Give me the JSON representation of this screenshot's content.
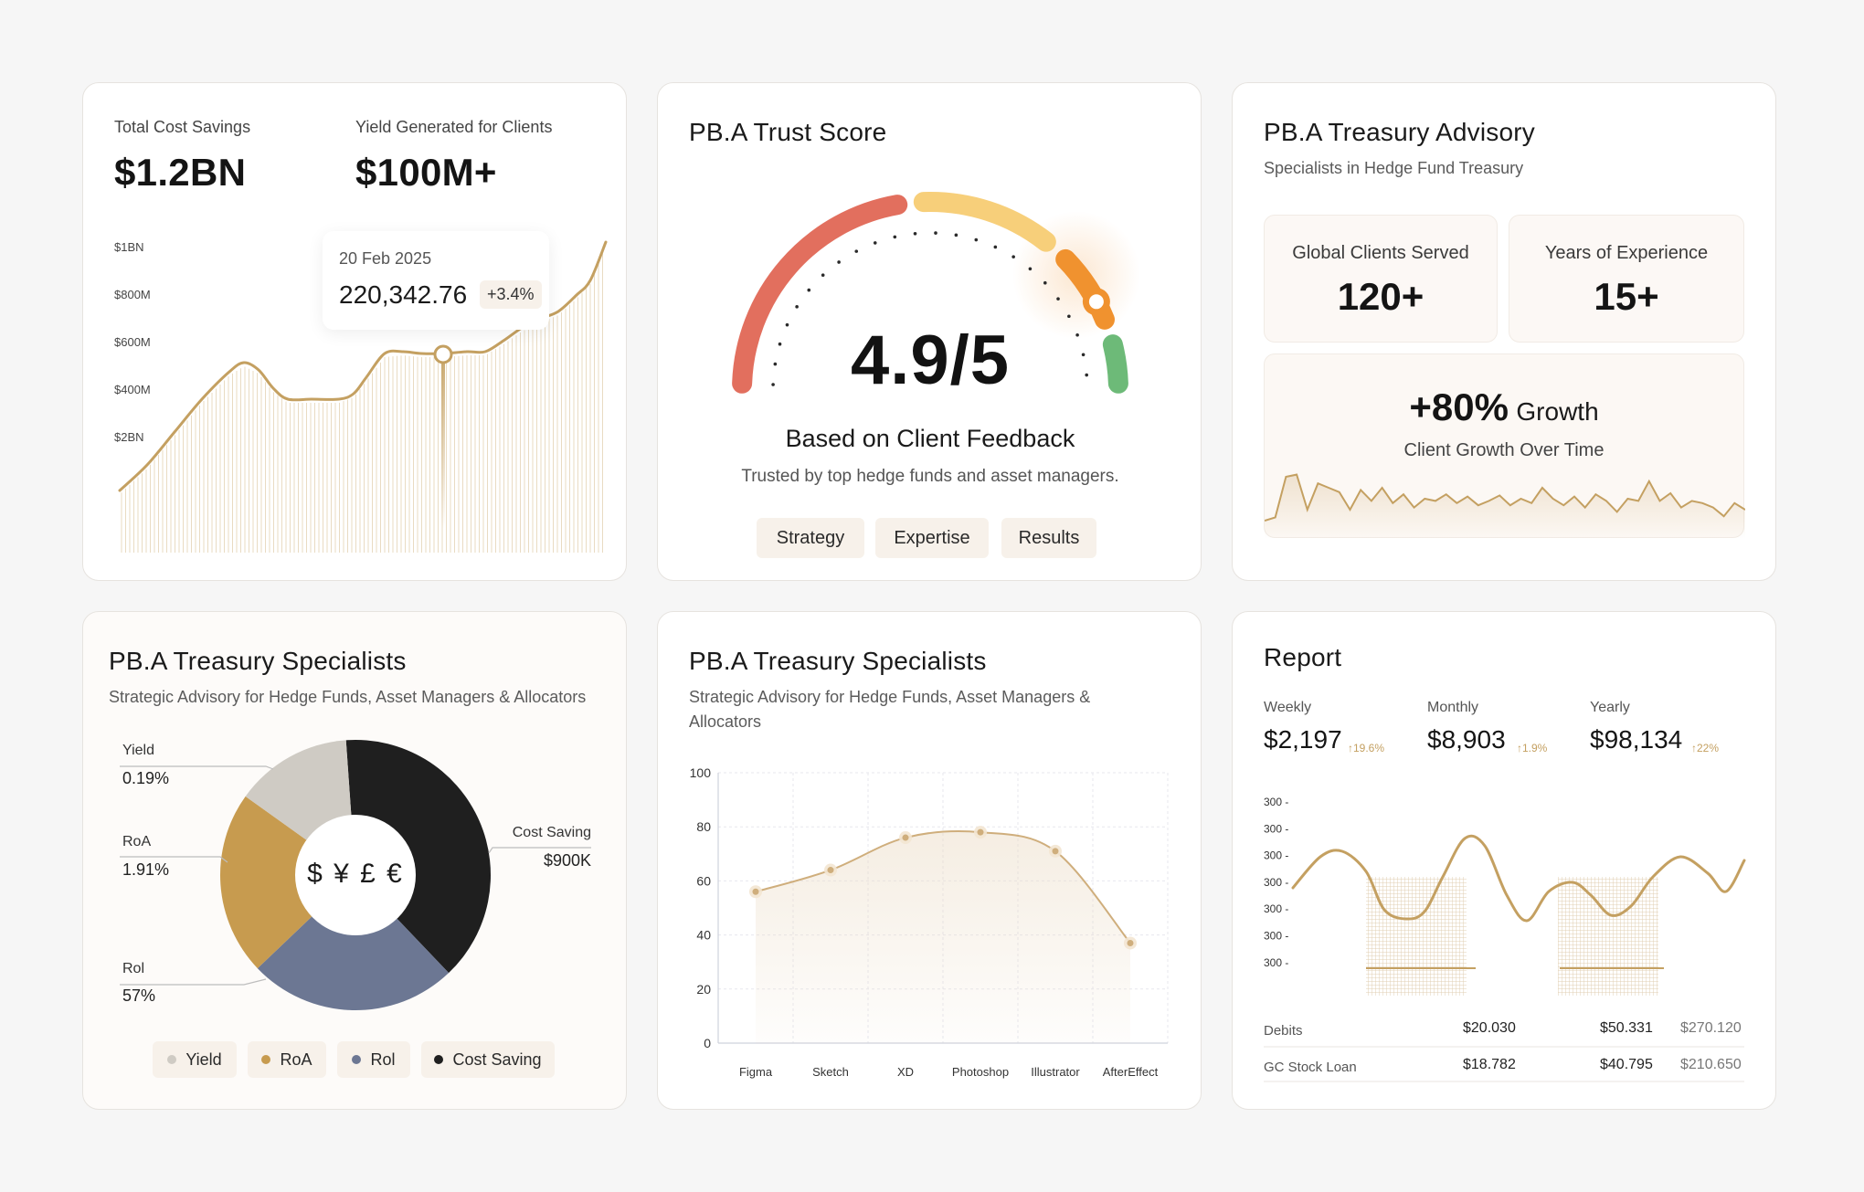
{
  "card1": {
    "label_a": "Total Cost Savings",
    "value_a": "$1.2BN",
    "label_b": "Yield Generated for Clients",
    "value_b": "$100M+",
    "tooltip": {
      "date": "20 Feb 2025",
      "value": "220,342.76",
      "change": "+3.4%"
    }
  },
  "card2": {
    "title": "PB.A Trust Score",
    "score": "4.9/5",
    "heading": "Based on Client Feedback",
    "subtext": "Trusted by top hedge funds and asset managers.",
    "tags": [
      "Strategy",
      "Expertise",
      "Results"
    ],
    "colors": {
      "red": "#e26f5e",
      "yellow": "#f7cf7a",
      "orange": "#f0922f",
      "green": "#6dba78"
    }
  },
  "card3": {
    "title": "PB.A Treasury Advisory",
    "subtitle": "Specialists in Hedge Fund Treasury",
    "stat1_label": "Global Clients Served",
    "stat1_value": "120+",
    "stat2_label": "Years of Experience",
    "stat2_value": "15+",
    "growth_value": "+80%",
    "growth_word": "Growth",
    "growth_label": "Client Growth Over Time"
  },
  "card4": {
    "title": "PB.A Treasury Specialists",
    "subtitle": "Strategic Advisory for Hedge Funds, Asset Managers & Allocators",
    "center_symbols": "$ ¥ £ €",
    "callouts": [
      {
        "name": "Yield",
        "value": "0.19%"
      },
      {
        "name": "RoA",
        "value": "1.91%"
      },
      {
        "name": "Rol",
        "value": "57%"
      },
      {
        "name": "Cost Saving",
        "value": "$900K"
      }
    ],
    "legend": [
      {
        "name": "Yield",
        "color": "#cfcbc4"
      },
      {
        "name": "RoA",
        "color": "#c79b4f"
      },
      {
        "name": "Rol",
        "color": "#6c7793"
      },
      {
        "name": "Cost Saving",
        "color": "#1f1f1f"
      }
    ]
  },
  "card5": {
    "title": "PB.A Treasury Specialists",
    "subtitle": "Strategic Advisory for Hedge Funds, Asset Managers & Allocators"
  },
  "card6": {
    "title": "Report",
    "stats": [
      {
        "label": "Weekly",
        "value": "$2,197",
        "change": "↑19.6%"
      },
      {
        "label": "Monthly",
        "value": "$8,903",
        "change": "↑1.9%"
      },
      {
        "label": "Yearly",
        "value": "$98,134",
        "change": "↑22%"
      }
    ],
    "rows": [
      {
        "name": "Debits",
        "c1": "$20.030",
        "c2": "$50.331",
        "c3": "$270.120"
      },
      {
        "name": "GC Stock Loan",
        "c1": "$18.782",
        "c2": "$40.795",
        "c3": "$210.650"
      }
    ]
  },
  "chart_data": [
    {
      "id": "cost-savings-line",
      "type": "line",
      "y_tick_labels": [
        "$1BN",
        "$800M",
        "$600M",
        "$400M",
        "$2BN"
      ],
      "grid": false,
      "legend": "none",
      "accent": "#c4a061"
    },
    {
      "id": "trust-gauge",
      "type": "gauge",
      "value": 4.9,
      "max": 5
    },
    {
      "id": "client-growth-sparkline",
      "type": "line",
      "values": [
        10,
        13,
        50,
        52,
        20,
        44,
        40,
        36,
        20,
        38,
        28,
        40,
        26,
        34,
        22,
        30,
        28,
        34,
        26,
        32,
        24,
        28,
        33,
        24,
        30,
        26,
        40,
        30,
        24,
        32,
        22,
        34,
        28,
        18,
        30,
        28,
        46,
        28,
        35,
        22,
        28,
        26,
        22,
        14,
        26,
        20
      ],
      "grid": false
    },
    {
      "id": "treasury-donut",
      "type": "pie",
      "categories": [
        "Cost Saving",
        "Rol",
        "RoA",
        "Yield"
      ],
      "values": [
        39,
        25,
        22,
        14
      ],
      "colors": [
        "#1f1f1f",
        "#6c7793",
        "#c79b4f",
        "#cfcbc4"
      ],
      "legend": "bottom"
    },
    {
      "id": "software-line",
      "type": "line",
      "categories": [
        "Figma",
        "Sketch",
        "XD",
        "Photoshop",
        "Illustrator",
        "AfterEffect"
      ],
      "values": [
        56,
        64,
        76,
        78,
        71,
        37
      ],
      "ylim": [
        0,
        100
      ],
      "yticks": [
        0,
        20,
        40,
        60,
        80,
        100
      ],
      "grid": true
    },
    {
      "id": "report-wave",
      "type": "line",
      "y_tick_labels": [
        "300",
        "300",
        "300",
        "300",
        "300",
        "300",
        "300"
      ],
      "grid": false
    }
  ]
}
